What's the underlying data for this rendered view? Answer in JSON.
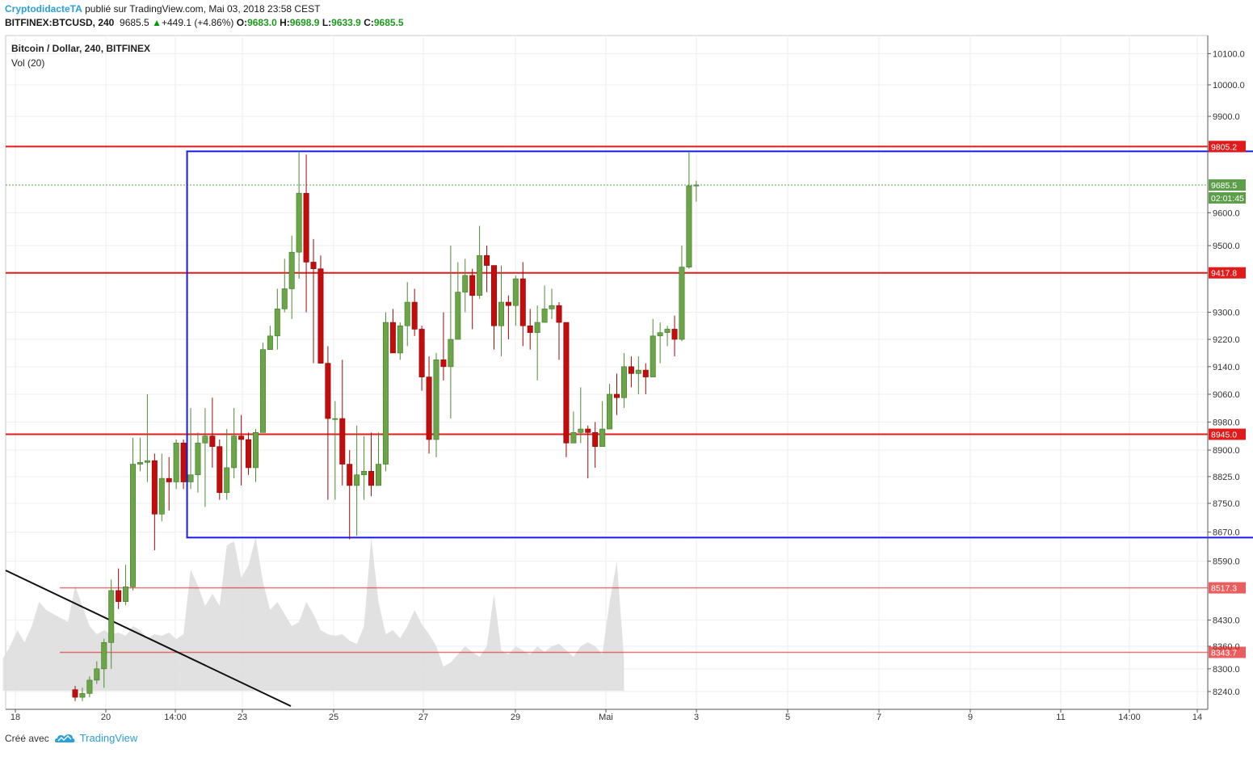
{
  "header": {
    "author": "CryptodidacteTA",
    "published_text": " publié sur TradingView.com, Mai 03, 2018 23:58 CEST",
    "symbol": "BITFINEX:BTCUSD, 240",
    "last_price": "9685.5",
    "change_arrow": "▲",
    "change": "+449.1 (+4.86%)",
    "o_label": "O:",
    "o_value": "9683.0",
    "h_label": "H:",
    "h_value": "9698.9",
    "l_label": "L:",
    "l_value": "9633.9",
    "c_label": "C:",
    "c_value": "9685.5"
  },
  "legend": {
    "title": "Bitcoin / Dollar, 240, BITFINEX",
    "volume": "Vol (20)"
  },
  "footer": {
    "created_with": "Créé avec",
    "brand": "TradingView"
  },
  "colors": {
    "bull": "#6ba547",
    "bear": "#c40c0c",
    "resistance": "#e01b1b",
    "box": "#1a1ae8",
    "trendline": "#111111",
    "volume": "#dcdcdc",
    "price_tag_green": "#5d9e4a"
  },
  "chart_data": {
    "type": "candlestick",
    "ylim": [
      8190,
      10160
    ],
    "y_scale": "log",
    "y_ticks": [
      "10100.0",
      "10000.0",
      "9900.0",
      "9600.0",
      "9500.0",
      "9300.0",
      "9220.0",
      "9140.0",
      "9060.0",
      "8980.0",
      "8900.0",
      "8825.0",
      "8750.0",
      "8670.0",
      "8590.0",
      "8430.0",
      "8360.0",
      "8300.0",
      "8240.0"
    ],
    "x_ticks": [
      "18",
      "20",
      "14:00",
      "23",
      "25",
      "27",
      "29",
      "Mai",
      "3",
      "5",
      "7",
      "9",
      "11",
      "14:00",
      "14"
    ],
    "horizontal_levels": [
      {
        "label": "9805.2",
        "value": 9805.2,
        "style": "strong"
      },
      {
        "label": "9417.8",
        "value": 9417.8,
        "style": "strong"
      },
      {
        "label": "8945.0",
        "value": 8945.0,
        "style": "strong"
      },
      {
        "label": "8517.3",
        "value": 8517.3,
        "style": "light"
      },
      {
        "label": "8343.7",
        "value": 8343.7,
        "style": "light"
      }
    ],
    "last_price_tag": "9685.5",
    "countdown_tag": "02:01:45",
    "box": {
      "top": 9790,
      "bottom": 8655,
      "start_index": 15.5,
      "end_index": 180
    },
    "candles": [
      [
        8245,
        8225,
        8255,
        8215
      ],
      [
        8225,
        8235,
        8250,
        8215
      ],
      [
        8235,
        8270,
        8280,
        8225
      ],
      [
        8270,
        8300,
        8320,
        8260
      ],
      [
        8300,
        8370,
        8380,
        8250
      ],
      [
        8370,
        8510,
        8540,
        8300
      ],
      [
        8510,
        8480,
        8570,
        8460
      ],
      [
        8480,
        8520,
        8580,
        8470
      ],
      [
        8520,
        8860,
        8935,
        8510
      ],
      [
        8860,
        8865,
        8935,
        8840
      ],
      [
        8865,
        8870,
        9060,
        8810
      ],
      [
        8870,
        8720,
        8890,
        8620
      ],
      [
        8720,
        8820,
        8890,
        8700
      ],
      [
        8820,
        8810,
        8880,
        8730
      ],
      [
        8810,
        8920,
        8930,
        8790
      ],
      [
        8920,
        8810,
        8930,
        8790
      ],
      [
        8810,
        8830,
        9020,
        8790
      ],
      [
        8830,
        8920,
        8950,
        8780
      ],
      [
        8920,
        8940,
        9020,
        8740
      ],
      [
        8940,
        8910,
        9050,
        8850
      ],
      [
        8910,
        8780,
        8930,
        8760
      ],
      [
        8780,
        8850,
        8960,
        8760
      ],
      [
        8850,
        8940,
        9020,
        8820
      ],
      [
        8940,
        8930,
        9000,
        8800
      ],
      [
        8930,
        8850,
        8950,
        8830
      ],
      [
        8850,
        8950,
        8960,
        8810
      ],
      [
        8950,
        9190,
        9210,
        8950
      ],
      [
        9190,
        9230,
        9260,
        9190
      ],
      [
        9230,
        9310,
        9370,
        9190
      ],
      [
        9310,
        9370,
        9460,
        9300
      ],
      [
        9370,
        9480,
        9530,
        9280
      ],
      [
        9480,
        9660,
        9790,
        9400
      ],
      [
        9660,
        9450,
        9780,
        9300
      ],
      [
        9450,
        9430,
        9520,
        9150
      ],
      [
        9430,
        9150,
        9470,
        9150
      ],
      [
        9150,
        8990,
        9200,
        8760
      ],
      [
        8990,
        8990,
        9040,
        8760
      ],
      [
        8990,
        8860,
        9160,
        8800
      ],
      [
        8860,
        8800,
        8900,
        8650
      ],
      [
        8800,
        8830,
        8970,
        8660
      ],
      [
        8830,
        8840,
        8940,
        8760
      ],
      [
        8840,
        8800,
        8950,
        8770
      ],
      [
        8800,
        8860,
        8950,
        8840
      ],
      [
        8860,
        9270,
        9300,
        8840
      ],
      [
        9270,
        9180,
        9310,
        9180
      ],
      [
        9180,
        9260,
        9270,
        9160
      ],
      [
        9260,
        9330,
        9390,
        9200
      ],
      [
        9330,
        9250,
        9370,
        9230
      ],
      [
        9250,
        9110,
        9260,
        9070
      ],
      [
        9110,
        8930,
        9170,
        8890
      ],
      [
        8930,
        9160,
        9180,
        8880
      ],
      [
        9160,
        9140,
        9300,
        9100
      ],
      [
        9140,
        9220,
        9500,
        8990
      ],
      [
        9220,
        9360,
        9450,
        9230
      ],
      [
        9360,
        9410,
        9460,
        9300
      ],
      [
        9410,
        9350,
        9430,
        9250
      ],
      [
        9350,
        9470,
        9560,
        9340
      ],
      [
        9470,
        9440,
        9500,
        9360
      ],
      [
        9440,
        9260,
        9430,
        9190
      ],
      [
        9260,
        9330,
        9440,
        9170
      ],
      [
        9330,
        9320,
        9350,
        9220
      ],
      [
        9320,
        9400,
        9410,
        9260
      ],
      [
        9400,
        9260,
        9450,
        9200
      ],
      [
        9260,
        9240,
        9310,
        9190
      ],
      [
        9240,
        9270,
        9320,
        9100
      ],
      [
        9270,
        9310,
        9380,
        9270
      ],
      [
        9310,
        9320,
        9370,
        9280
      ],
      [
        9320,
        9270,
        9330,
        9160
      ],
      [
        9270,
        8920,
        9270,
        8880
      ],
      [
        8920,
        8950,
        9010,
        8930
      ],
      [
        8950,
        8960,
        9080,
        8920
      ],
      [
        8960,
        8950,
        8970,
        8820
      ],
      [
        8950,
        8910,
        8980,
        8850
      ],
      [
        8910,
        8960,
        9040,
        8910
      ],
      [
        8960,
        9060,
        9090,
        9000
      ],
      [
        9060,
        9050,
        9120,
        9000
      ],
      [
        9050,
        9140,
        9180,
        9020
      ],
      [
        9140,
        9120,
        9170,
        9080
      ],
      [
        9120,
        9130,
        9170,
        9060
      ],
      [
        9130,
        9110,
        9150,
        9060
      ],
      [
        9110,
        9230,
        9280,
        9110
      ],
      [
        9230,
        9240,
        9270,
        9150
      ],
      [
        9240,
        9250,
        9260,
        9200
      ],
      [
        9250,
        9220,
        9290,
        9170
      ],
      [
        9220,
        9435,
        9500,
        9215
      ],
      [
        9435,
        9683,
        9790,
        9430
      ],
      [
        9683,
        9685.5,
        9698.9,
        9633.9
      ]
    ],
    "volumes": [
      0.4,
      0.55,
      0.75,
      0.6,
      0.8,
      1.1,
      1.0,
      0.95,
      0.9,
      0.85,
      1.3,
      1.05,
      0.8,
      0.7,
      0.75,
      0.7,
      0.72,
      0.68,
      0.8,
      0.75,
      0.65,
      0.7,
      0.68,
      0.72,
      0.64,
      0.7,
      1.5,
      1.3,
      1.05,
      1.2,
      1.05,
      1.8,
      1.85,
      1.4,
      1.55,
      1.9,
      1.35,
      1.0,
      1.1,
      0.95,
      0.8,
      0.85,
      1.1,
      0.95,
      0.75,
      0.7,
      0.68,
      0.7,
      0.62,
      0.58,
      0.8,
      1.9,
      1.1,
      0.7,
      0.75,
      0.65,
      0.8,
      1.0,
      0.82,
      0.7,
      0.55,
      0.3,
      0.35,
      0.45,
      0.55,
      0.48,
      0.42,
      0.55,
      1.2,
      0.5,
      0.45,
      0.55,
      0.5,
      0.45,
      0.55,
      0.48,
      0.55,
      0.58,
      0.5,
      0.42,
      0.55,
      0.6,
      0.55,
      0.45,
      1.1,
      1.6,
      0.4
    ]
  }
}
